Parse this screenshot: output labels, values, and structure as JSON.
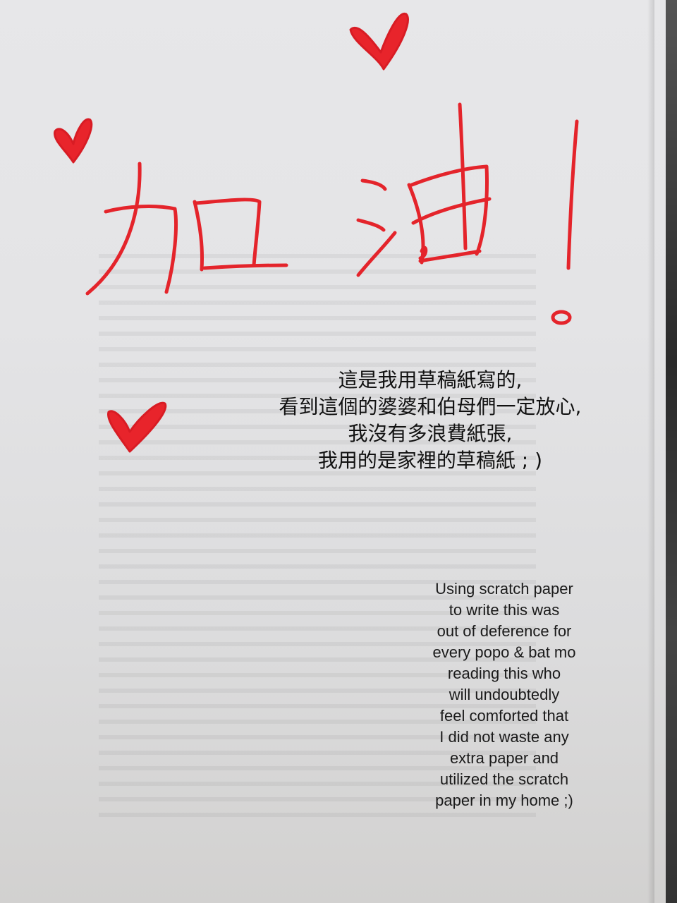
{
  "handwriting": {
    "text": "加油!",
    "ink_color": "#e4242b"
  },
  "hearts": [
    "heart-icon",
    "heart-icon",
    "heart-icon"
  ],
  "chinese_caption": {
    "lines": [
      "這是我用草稿紙寫的,",
      "看到這個的婆婆和伯母們一定放心,",
      "我沒有多浪費紙張,",
      "我用的是家裡的草稿紙 ; )"
    ]
  },
  "english_caption": {
    "lines": [
      "Using scratch paper",
      "to write this was",
      "out of deference for",
      "every popo & bat mo",
      "reading this who",
      "will undoubtedly",
      "feel comforted that",
      "I did not waste any",
      "extra paper and",
      "utilized the scratch",
      "paper in my home ;)"
    ]
  }
}
